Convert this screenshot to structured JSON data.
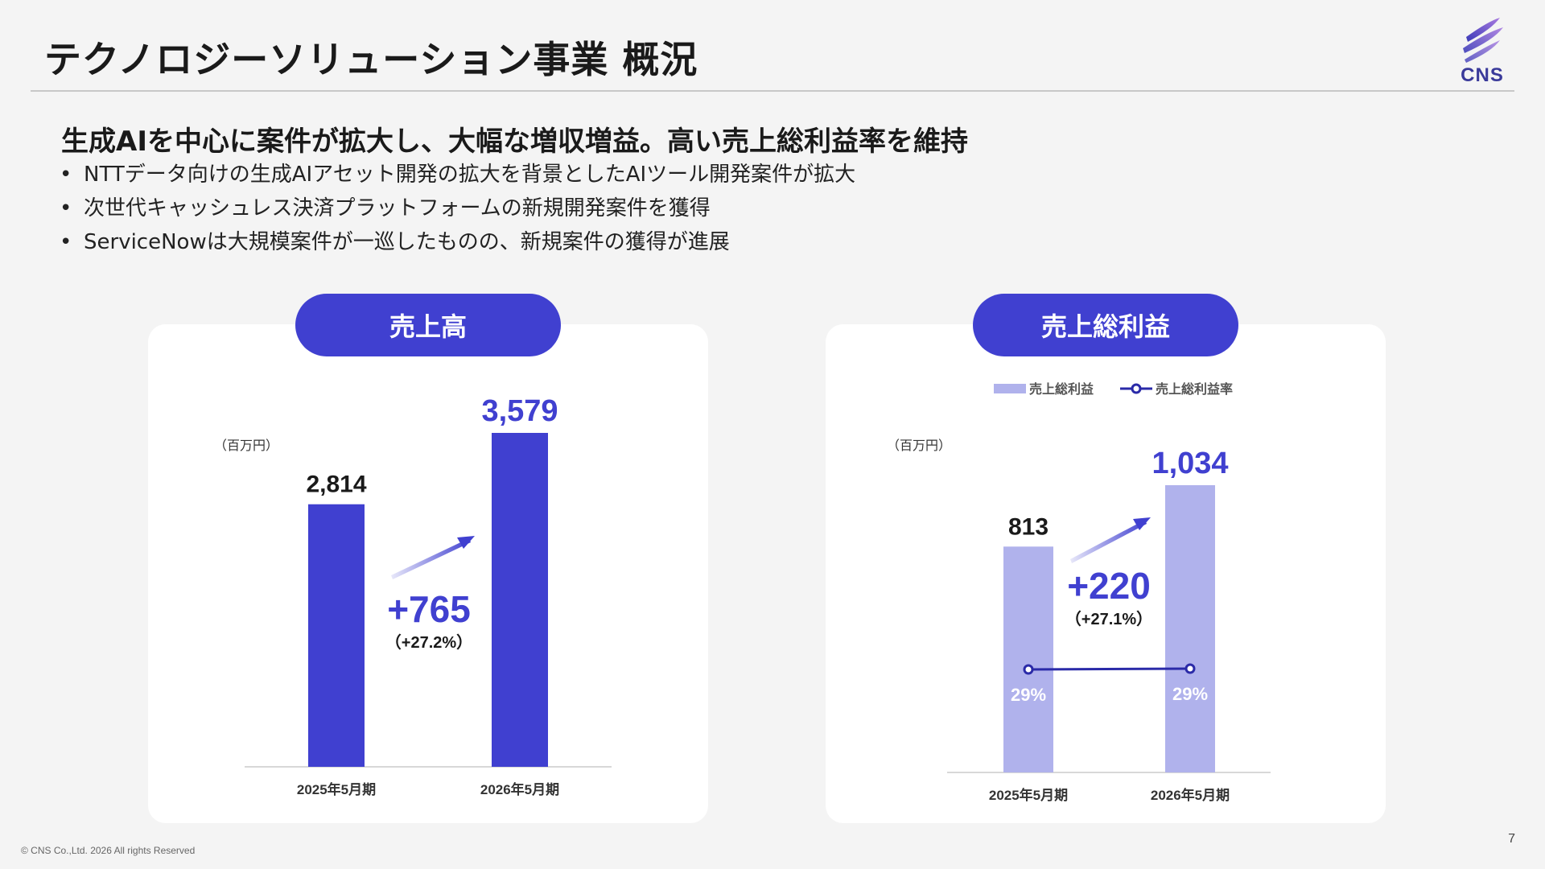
{
  "header": {
    "title": "テクノロジーソリューション事業 概況",
    "logo_text": "CNS"
  },
  "summary": {
    "headline": "生成AIを中心に案件が拡大し、大幅な増収増益。高い売上総利益率を維持",
    "bullets": [
      "NTTデータ向けの生成AIアセット開発の拡大を背景としたAIツール開発案件が拡大",
      "次世代キャッシュレス決済プラットフォームの新規開発案件を獲得",
      "ServiceNowは大規模案件が一巡したものの、新規案件の獲得が進展"
    ]
  },
  "colors": {
    "accent": "#4040d0",
    "bar_primary": "#4040d0",
    "bar_light": "#b0b2ec",
    "line_dark": "#2a2aa8"
  },
  "chart_data": [
    {
      "type": "bar",
      "title": "売上高",
      "unit": "（百万円）",
      "categories": [
        "2025年5月期",
        "2026年5月期"
      ],
      "values": [
        2814,
        3579
      ],
      "value_labels": [
        "2,814",
        "3,579"
      ],
      "ylim": [
        0,
        3579
      ],
      "change": {
        "value": "+765",
        "percent": "（+27.2%）"
      }
    },
    {
      "type": "bar",
      "title": "売上総利益",
      "unit": "（百万円）",
      "categories": [
        "2025年5月期",
        "2026年5月期"
      ],
      "legend": [
        "売上総利益",
        "売上総利益率"
      ],
      "legend_position": "top",
      "series": [
        {
          "name": "売上総利益",
          "type": "bar",
          "values": [
            813,
            1034
          ],
          "value_labels": [
            "813",
            "1,034"
          ]
        },
        {
          "name": "売上総利益率",
          "type": "line",
          "values": [
            29,
            29
          ],
          "value_labels": [
            "29%",
            "29%"
          ]
        }
      ],
      "ylim": [
        0,
        1034
      ],
      "change": {
        "value": "+220",
        "percent": "（+27.1%）"
      }
    }
  ],
  "footer": {
    "page": "7",
    "copyright": "© CNS Co.,Ltd. 2026 All rights Reserved"
  }
}
